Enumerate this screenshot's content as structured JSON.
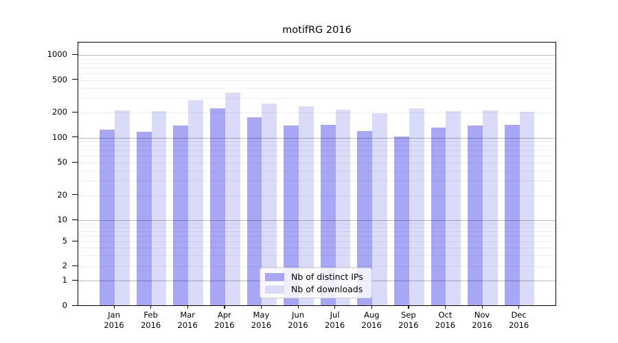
{
  "title": "motifRG 2016",
  "chart_data": {
    "type": "bar",
    "title": "motifRG 2016",
    "categories": [
      "Jan 2016",
      "Feb 2016",
      "Mar 2016",
      "Apr 2016",
      "May 2016",
      "Jun 2016",
      "Jul 2016",
      "Aug 2016",
      "Sep 2016",
      "Oct 2016",
      "Nov 2016",
      "Dec 2016"
    ],
    "series": [
      {
        "name": "Nb of distinct IPs",
        "color": "#a7a7f5",
        "values": [
          128,
          120,
          143,
          230,
          180,
          143,
          146,
          123,
          104,
          134,
          142,
          144
        ]
      },
      {
        "name": "Nb of downloads",
        "color": "#dadaf9",
        "values": [
          218,
          210,
          290,
          355,
          262,
          244,
          220,
          200,
          228,
          211,
          218,
          206
        ]
      }
    ],
    "xlabel": "",
    "ylabel": "",
    "yscale": "log-like",
    "yticks": [
      0,
      1,
      2,
      5,
      10,
      20,
      50,
      100,
      200,
      500,
      1000
    ],
    "ylim": [
      0,
      1400
    ],
    "grid": "on",
    "legend_position": "lower center"
  }
}
